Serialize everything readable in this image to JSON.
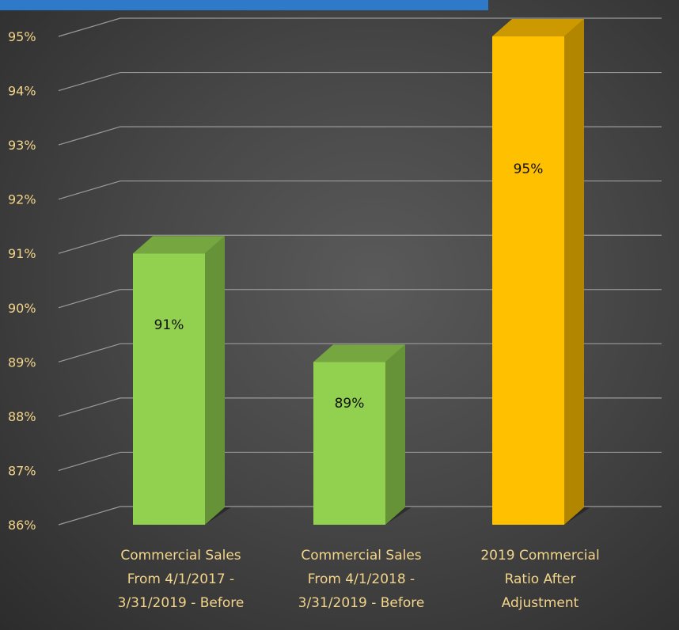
{
  "chart_data": {
    "type": "bar",
    "categories": [
      [
        "Commercial Sales",
        "From 4/1/2017 -",
        "3/31/2019 - Before"
      ],
      [
        "Commercial Sales",
        "From 4/1/2018 -",
        "3/31/2019 - Before"
      ],
      [
        "2019 Commercial",
        "Ratio After",
        "Adjustment"
      ]
    ],
    "values": [
      91,
      89,
      95
    ],
    "value_labels": [
      "91%",
      "89%",
      "95%"
    ],
    "bar_colors": [
      "#92d050",
      "#92d050",
      "#ffc000"
    ],
    "ylim": [
      86,
      95
    ],
    "yticks": [
      "86%",
      "87%",
      "88%",
      "89%",
      "90%",
      "91%",
      "92%",
      "93%",
      "94%",
      "95%"
    ],
    "title": "",
    "xlabel": "",
    "ylabel": "",
    "grid": true,
    "legend": "none",
    "style": "3d-column"
  }
}
